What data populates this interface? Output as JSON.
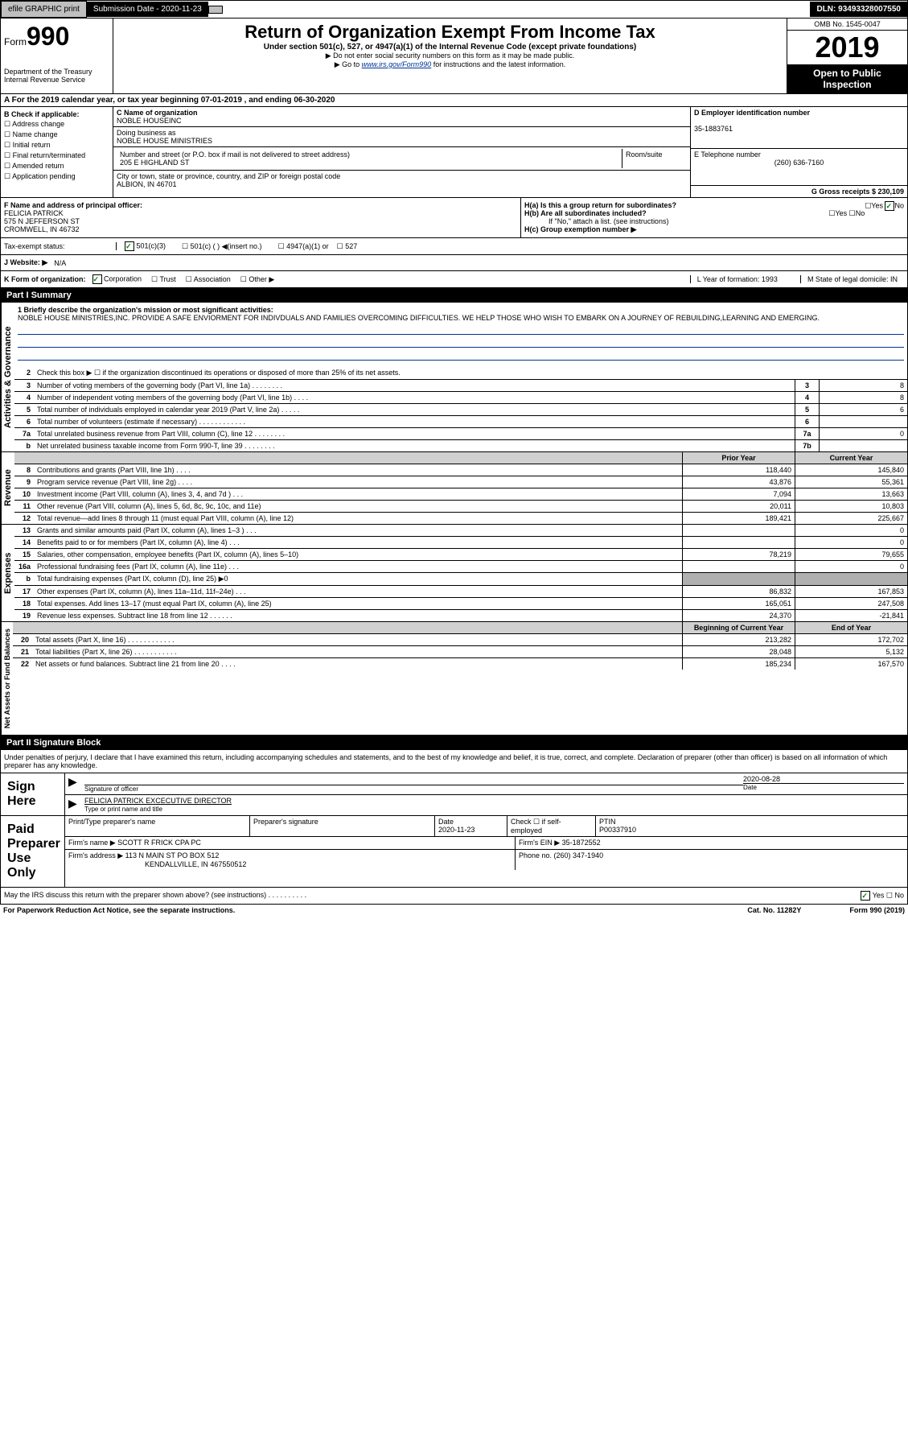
{
  "topbar": {
    "efile": "efile GRAPHIC print",
    "sub_date_label": "Submission Date - 2020-11-23",
    "dln": "DLN: 93493328007550"
  },
  "header": {
    "form_label": "Form",
    "form_num": "990",
    "dept": "Department of the Treasury\nInternal Revenue Service",
    "title": "Return of Organization Exempt From Income Tax",
    "sub": "Under section 501(c), 527, or 4947(a)(1) of the Internal Revenue Code (except private foundations)",
    "note1": "▶ Do not enter social security numbers on this form as it may be made public.",
    "note2_pre": "▶ Go to ",
    "note2_link": "www.irs.gov/Form990",
    "note2_post": " for instructions and the latest information.",
    "omb": "OMB No. 1545-0047",
    "year": "2019",
    "open": "Open to Public Inspection"
  },
  "period": "A For the 2019 calendar year, or tax year beginning 07-01-2019    , and ending 06-30-2020",
  "colB": {
    "label": "B Check if applicable:",
    "opts": [
      "Address change",
      "Name change",
      "Initial return",
      "Final return/terminated",
      "Amended return",
      "Application pending"
    ]
  },
  "colC": {
    "name_label": "C Name of organization",
    "name": "NOBLE HOUSEINC",
    "dba_label": "Doing business as",
    "dba": "NOBLE HOUSE MINISTRIES",
    "addr_label": "Number and street (or P.O. box if mail is not delivered to street address)",
    "addr": "205 E HIGHLAND ST",
    "room_label": "Room/suite",
    "city_label": "City or town, state or province, country, and ZIP or foreign postal code",
    "city": "ALBION, IN  46701"
  },
  "colD": {
    "ein_label": "D Employer identification number",
    "ein": "35-1883761",
    "phone_label": "E Telephone number",
    "phone": "(260) 636-7160",
    "gross_label": "G Gross receipts $ 230,109"
  },
  "rowF": {
    "label": "F  Name and address of principal officer:",
    "name": "FELICIA PATRICK",
    "addr1": "575 N JEFFERSON ST",
    "addr2": "CROMWELL, IN  46732"
  },
  "rowH": {
    "a": "H(a)  Is this a group return for subordinates?",
    "b": "H(b)  Are all subordinates included?",
    "b_note": "If \"No,\" attach a list. (see instructions)",
    "c": "H(c)  Group exemption number ▶"
  },
  "taxStatus": {
    "label": "Tax-exempt status:",
    "opts": [
      "501(c)(3)",
      "501(c) (  ) ◀(insert no.)",
      "4947(a)(1) or",
      "527"
    ]
  },
  "website": {
    "label": "J  Website: ▶",
    "val": "N/A"
  },
  "kform": {
    "label": "K Form of organization:",
    "opts": [
      "Corporation",
      "Trust",
      "Association",
      "Other ▶"
    ],
    "year_label": "L Year of formation: 1993",
    "state_label": "M State of legal domicile: IN"
  },
  "part1": {
    "header": "Part I      Summary",
    "briefly_label": "1  Briefly describe the organization's mission or most significant activities:",
    "briefly": "NOBLE HOUSE MINISTRIES,INC. PROVIDE A SAFE ENVIORMENT FOR INDIVDUALS AND FAMILIES OVERCOMING DIFFICULTIES. WE HELP THOSE WHO WISH TO EMBARK ON A JOURNEY OF REBUILDING,LEARNING AND EMERGING.",
    "line2": "Check this box ▶ ☐ if the organization discontinued its operations or disposed of more than 25% of its net assets.",
    "gov_rows": [
      {
        "n": "3",
        "t": "Number of voting members of the governing body (Part VI, line 1a)  .    .    .    .    .    .    .    .",
        "box": "3",
        "v": "8"
      },
      {
        "n": "4",
        "t": "Number of independent voting members of the governing body (Part VI, line 1b)   .    .    .    .",
        "box": "4",
        "v": "8"
      },
      {
        "n": "5",
        "t": "Total number of individuals employed in calendar year 2019 (Part V, line 2a)    .    .    .    .    .",
        "box": "5",
        "v": "6"
      },
      {
        "n": "6",
        "t": "Total number of volunteers (estimate if necessary)     .    .    .    .    .    .    .    .    .    .    .    .",
        "box": "6",
        "v": ""
      },
      {
        "n": "7a",
        "t": "Total unrelated business revenue from Part VIII, column (C), line 12   .    .    .    .    .    .    .    .",
        "box": "7a",
        "v": "0"
      },
      {
        "n": "b",
        "t": "Net unrelated business taxable income from Form 990-T, line 39    .    .    .    .    .    .    .    .",
        "box": "7b",
        "v": ""
      }
    ],
    "prior_label": "Prior Year",
    "current_label": "Current Year",
    "rev_rows": [
      {
        "n": "8",
        "t": "Contributions and grants (Part VIII, line 1h)    .    .    .    .",
        "p": "118,440",
        "c": "145,840"
      },
      {
        "n": "9",
        "t": "Program service revenue (Part VIII, line 2g)    .    .    .    .",
        "p": "43,876",
        "c": "55,361"
      },
      {
        "n": "10",
        "t": "Investment income (Part VIII, column (A), lines 3, 4, and 7d )   .    .    .",
        "p": "7,094",
        "c": "13,663"
      },
      {
        "n": "11",
        "t": "Other revenue (Part VIII, column (A), lines 5, 6d, 8c, 9c, 10c, and 11e)",
        "p": "20,011",
        "c": "10,803"
      },
      {
        "n": "12",
        "t": "Total revenue—add lines 8 through 11 (must equal Part VIII, column (A), line 12)",
        "p": "189,421",
        "c": "225,667"
      }
    ],
    "exp_rows": [
      {
        "n": "13",
        "t": "Grants and similar amounts paid (Part IX, column (A), lines 1–3 )   .    .    .",
        "p": "",
        "c": "0"
      },
      {
        "n": "14",
        "t": "Benefits paid to or for members (Part IX, column (A), line 4)    .    .    .",
        "p": "",
        "c": "0"
      },
      {
        "n": "15",
        "t": "Salaries, other compensation, employee benefits (Part IX, column (A), lines 5–10)",
        "p": "78,219",
        "c": "79,655"
      },
      {
        "n": "16a",
        "t": "Professional fundraising fees (Part IX, column (A), line 11e)   .    .    .",
        "p": "",
        "c": "0"
      },
      {
        "n": "b",
        "t": "Total fundraising expenses (Part IX, column (D), line 25) ▶0",
        "p": "shade",
        "c": "shade"
      },
      {
        "n": "17",
        "t": "Other expenses (Part IX, column (A), lines 11a–11d, 11f–24e)    .    .    .",
        "p": "86,832",
        "c": "167,853"
      },
      {
        "n": "18",
        "t": "Total expenses. Add lines 13–17 (must equal Part IX, column (A), line 25)",
        "p": "165,051",
        "c": "247,508"
      },
      {
        "n": "19",
        "t": "Revenue less expenses. Subtract line 18 from line 12   .    .    .    .    .    .",
        "p": "24,370",
        "c": "-21,841"
      }
    ],
    "begin_label": "Beginning of Current Year",
    "end_label": "End of Year",
    "net_rows": [
      {
        "n": "20",
        "t": "Total assets (Part X, line 16)   .    .    .    .    .    .    .    .    .    .    .    .",
        "p": "213,282",
        "c": "172,702"
      },
      {
        "n": "21",
        "t": "Total liabilities (Part X, line 26)   .    .    .    .    .    .    .    .    .    .    .",
        "p": "28,048",
        "c": "5,132"
      },
      {
        "n": "22",
        "t": "Net assets or fund balances. Subtract line 21 from line 20   .    .    .    .",
        "p": "185,234",
        "c": "167,570"
      }
    ],
    "vert_gov": "Activities & Governance",
    "vert_rev": "Revenue",
    "vert_exp": "Expenses",
    "vert_net": "Net Assets or Fund Balances"
  },
  "part2": {
    "header": "Part II     Signature Block",
    "declare": "Under penalties of perjury, I declare that I have examined this return, including accompanying schedules and statements, and to the best of my knowledge and belief, it is true, correct, and complete. Declaration of preparer (other than officer) is based on all information of which preparer has any knowledge.",
    "sign_here": "Sign Here",
    "sig_officer": "Signature of officer",
    "date": "2020-08-28",
    "date_label": "Date",
    "officer_name": "FELICIA PATRICK  EXCECUTIVE DIRECTOR",
    "type_label": "Type or print name and title",
    "paid_prep": "Paid Preparer Use Only",
    "prep_name_label": "Print/Type preparer's name",
    "prep_sig_label": "Preparer's signature",
    "prep_date_label": "Date",
    "prep_date": "2020-11-23",
    "prep_check": "Check ☐ if self-employed",
    "ptin_label": "PTIN",
    "ptin": "P00337910",
    "firm_name_label": "Firm's name    ▶",
    "firm_name": "SCOTT R FRICK CPA PC",
    "firm_ein_label": "Firm's EIN ▶ 35-1872552",
    "firm_addr_label": "Firm's address ▶",
    "firm_addr1": "113 N MAIN ST PO BOX 512",
    "firm_addr2": "KENDALLVILLE, IN  467550512",
    "firm_phone": "Phone no. (260) 347-1940",
    "discuss": "May the IRS discuss this return with the preparer shown above? (see instructions)    .    .    .    .    .    .    .    .    .    .",
    "footer_note": "For Paperwork Reduction Act Notice, see the separate instructions.",
    "cat": "Cat. No. 11282Y",
    "form_ref": "Form 990 (2019)"
  }
}
